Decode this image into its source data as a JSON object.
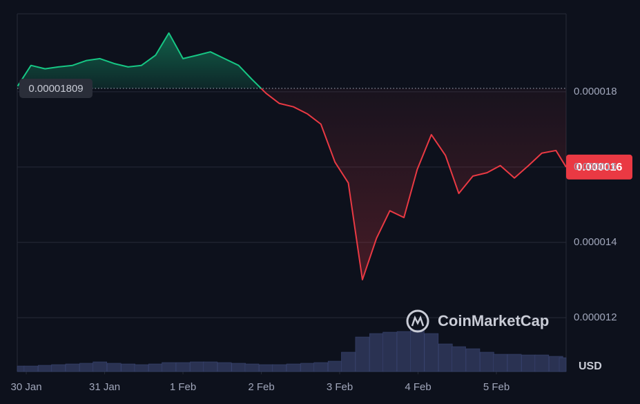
{
  "chart_data": {
    "type": "line",
    "x": [
      -0.11,
      0.06,
      0.24,
      0.41,
      0.59,
      0.77,
      0.94,
      1.12,
      1.3,
      1.47,
      1.65,
      1.82,
      2.0,
      2.18,
      2.35,
      2.53,
      2.71,
      2.88,
      3.06,
      3.23,
      3.41,
      3.59,
      3.76,
      3.94,
      4.11,
      4.29,
      4.47,
      4.64,
      4.82,
      4.99,
      5.17,
      5.35,
      5.52,
      5.7,
      5.88,
      6.05,
      6.23,
      6.41,
      6.58,
      6.76,
      6.89
    ],
    "series": [
      {
        "values": [
          1.815e-05,
          1.87e-05,
          1.861e-05,
          1.866e-05,
          1.87e-05,
          1.883e-05,
          1.888e-05,
          1.875e-05,
          1.866e-05,
          1.87e-05,
          1.897e-05,
          1.956e-05,
          1.888e-05,
          1.897e-05,
          1.906e-05,
          1.888e-05,
          1.87e-05,
          1.833e-05,
          1.796e-05,
          1.769e-05,
          1.76e-05,
          1.741e-05,
          1.714e-05,
          1.613e-05,
          1.558e-05,
          1.301e-05,
          1.411e-05,
          1.484e-05,
          1.466e-05,
          1.594e-05,
          1.686e-05,
          1.631e-05,
          1.53e-05,
          1.576e-05,
          1.585e-05,
          1.604e-05,
          1.571e-05,
          1.604e-05,
          1.637e-05,
          1.644e-05,
          1.6e-05
        ]
      },
      {
        "values": [
          8,
          8,
          9,
          10,
          11,
          12,
          14,
          12,
          11,
          10,
          11,
          13,
          13,
          14,
          14,
          13,
          12,
          11,
          10,
          10,
          11,
          12,
          13,
          15,
          28,
          50,
          55,
          57,
          58,
          60,
          55,
          40,
          36,
          33,
          28,
          25,
          25,
          24,
          24,
          22,
          20
        ],
        "axis": "volume"
      }
    ],
    "up_color": "#16c784",
    "down_color": "#ea3943",
    "volume_color": "#2a3252",
    "baseline": 1.809e-05,
    "xlim": [
      -0.115,
      6.89
    ],
    "xticks": [
      {
        "value": 0,
        "label": "30 Jan"
      },
      {
        "value": 1,
        "label": "31 Jan"
      },
      {
        "value": 2,
        "label": "1 Feb"
      },
      {
        "value": 3,
        "label": "2 Feb"
      },
      {
        "value": 4,
        "label": "3 Feb"
      },
      {
        "value": 5,
        "label": "4 Feb"
      },
      {
        "value": 6,
        "label": "5 Feb"
      }
    ],
    "ylim": [
      1.057e-05,
      2.007e-05
    ],
    "yticks": [
      1.2e-05,
      1.4e-05,
      1.6e-05,
      1.8e-05
    ],
    "volume_lim": [
      0,
      100
    ],
    "grid": true,
    "currency": "USD",
    "watermark": "CoinMarketCap"
  }
}
